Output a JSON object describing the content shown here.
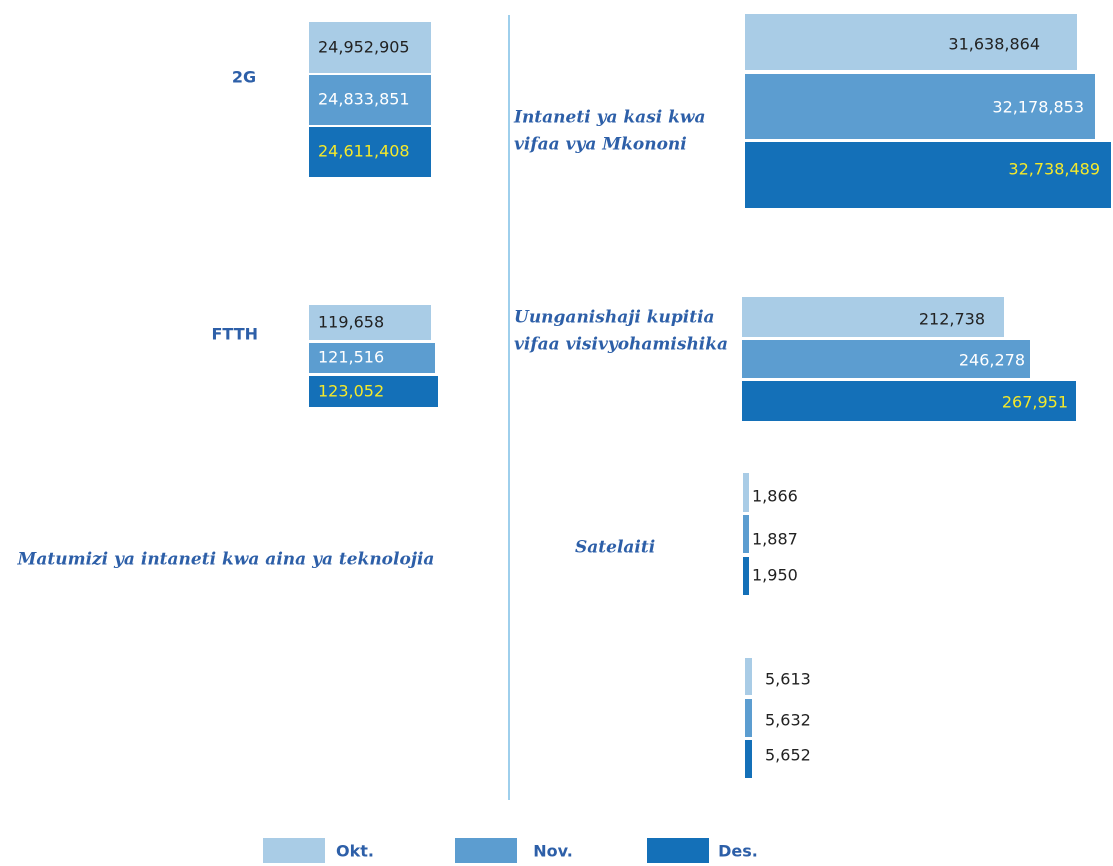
{
  "title": "Matumizi ya intaneti kwa aina ya teknolojia",
  "legend": [
    "Okt.",
    "Nov.",
    "Des."
  ],
  "colors": [
    "#a9cce6",
    "#5c9dd0",
    "#1470b8"
  ],
  "groups": [
    {
      "label": [
        "2G"
      ],
      "values": [
        "24,952,905",
        "24,833,851",
        "24,611,408"
      ]
    },
    {
      "label": [
        "FTTH"
      ],
      "values": [
        "119,658",
        "121,516",
        "123,052"
      ]
    },
    {
      "label": [
        "Intaneti ya kasi kwa",
        "vifaa vya Mkononi"
      ],
      "values": [
        "31,638,864",
        "32,178,853",
        "32,738,489"
      ]
    },
    {
      "label": [
        "Uunganishaji kupitia",
        "vifaa visivyohamishika"
      ],
      "values": [
        "212,738",
        "246,278",
        "267,951"
      ]
    },
    {
      "label": [
        "Satelaiti"
      ],
      "values": [
        "1,866",
        "1,887",
        "1,950"
      ]
    },
    {
      "values": [
        "5,613",
        "5,632",
        "5,652"
      ]
    }
  ]
}
